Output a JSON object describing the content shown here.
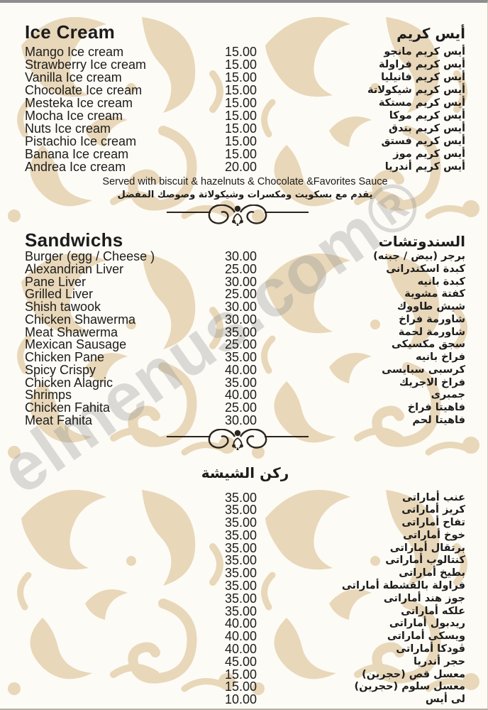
{
  "watermark": "elmenus.com®",
  "colors": {
    "paper": "#fdfbf5",
    "pattern": "#e8d7b9",
    "text": "#1c1c1c",
    "watermark_grey": "#8c8c8c"
  },
  "sections": [
    {
      "id": "ice-cream",
      "title_en": "Ice Cream",
      "title_ar": "أيس كريم",
      "items": [
        {
          "en": "Mango Ice cream",
          "price": "15.00",
          "ar": "أيس كريم مانجو"
        },
        {
          "en": "Strawberry Ice cream",
          "price": "15.00",
          "ar": "أيس كريم فراولة"
        },
        {
          "en": "Vanilla Ice cream",
          "price": "15.00",
          "ar": "أيس كريم فانيليا"
        },
        {
          "en": "Chocolate Ice cream",
          "price": "15.00",
          "ar": "أيس كريم شيكولاتة"
        },
        {
          "en": "Mesteka Ice cream",
          "price": "15.00",
          "ar": "أيس كريم مستكة"
        },
        {
          "en": "Mocha Ice cream",
          "price": "15.00",
          "ar": "أيس كريم موكا"
        },
        {
          "en": "Nuts Ice cream",
          "price": "15.00",
          "ar": "أيس كريم بندق"
        },
        {
          "en": "Pistachio Ice cream",
          "price": "15.00",
          "ar": "أيس كريم فستق"
        },
        {
          "en": "Banana Ice cream",
          "price": "15.00",
          "ar": "أيس كريم موز"
        },
        {
          "en": "Andrea Ice cream",
          "price": "20.00",
          "ar": "أيس كريم أندريا"
        }
      ],
      "note_en": "Served with biscuit & hazelnuts & Chocolate &Favorites Sauce",
      "note_ar": "يقدم مع بسكويت ومكسرات وشيكولاتة وصوصك المفضل"
    },
    {
      "id": "sandwichs",
      "title_en": "Sandwichs",
      "title_ar": "السندوتشات",
      "items": [
        {
          "en": "Burger (egg / Cheese )",
          "price": "30.00",
          "ar": "برجر (بيض / جبنه)"
        },
        {
          "en": "Alexandrian Liver",
          "price": "25.00",
          "ar": "كبدة اسكندرانى"
        },
        {
          "en": "Pane Liver",
          "price": "30.00",
          "ar": "كبدة بانيه"
        },
        {
          "en": "Grilled Liver",
          "price": "25.00",
          "ar": "كفتة مشوية"
        },
        {
          "en": "Shish tawook",
          "price": "30.00",
          "ar": "شيش طاووك"
        },
        {
          "en": "Chicken Shawerma",
          "price": "30.00",
          "ar": "شاورمة فراخ"
        },
        {
          "en": "Meat Shawerma",
          "price": "35.00",
          "ar": "شاورمة لحمة"
        },
        {
          "en": "Mexican Sausage",
          "price": "25.00",
          "ar": "سجق مكسيكى"
        },
        {
          "en": "Chicken Pane",
          "price": "35.00",
          "ar": "فراخ بانيه"
        },
        {
          "en": "Spicy Crispy",
          "price": "40.00",
          "ar": "كرسبى سبايسى"
        },
        {
          "en": "Chicken Alagric",
          "price": "35.00",
          "ar": "فراخ الاجريك"
        },
        {
          "en": "Shrimps",
          "price": "40.00",
          "ar": "جمبرى"
        },
        {
          "en": "Chicken Fahita",
          "price": "25.00",
          "ar": "فاهيتا فراخ"
        },
        {
          "en": "Meat Fahita",
          "price": "30.00",
          "ar": "فاهيتا لحم"
        }
      ]
    },
    {
      "id": "shisha",
      "title_ar": "ركن الشيشة",
      "items": [
        {
          "price": "35.00",
          "ar": "عنب أماراتى"
        },
        {
          "price": "35.00",
          "ar": "كريز أماراتى"
        },
        {
          "price": "35.00",
          "ar": "تفاح أماراتى"
        },
        {
          "price": "35.00",
          "ar": "خوخ أماراتى"
        },
        {
          "price": "35.00",
          "ar": "برتقال أماراتى"
        },
        {
          "price": "35.00",
          "ar": "كنتالوب أماراتى"
        },
        {
          "price": "35.00",
          "ar": "بطيخ أماراتى"
        },
        {
          "price": "35.00",
          "ar": "فراولة بالقشطة أماراتى"
        },
        {
          "price": "35.00",
          "ar": "جوز هند أماراتى"
        },
        {
          "price": "35.00",
          "ar": "علكه أماراتى"
        },
        {
          "price": "40.00",
          "ar": "ريدبول أماراتى"
        },
        {
          "price": "40.00",
          "ar": "ويسكى أماراتى"
        },
        {
          "price": "40.00",
          "ar": "ڤودكا أماراتى"
        },
        {
          "price": "45.00",
          "ar": "حجر أندريا"
        },
        {
          "price": "15.00",
          "ar": "معسل قص (حجرين)"
        },
        {
          "price": "15.00",
          "ar": "معسل سلوم (حجرين)"
        },
        {
          "price": "10.00",
          "ar": "لى أيس"
        }
      ]
    }
  ]
}
